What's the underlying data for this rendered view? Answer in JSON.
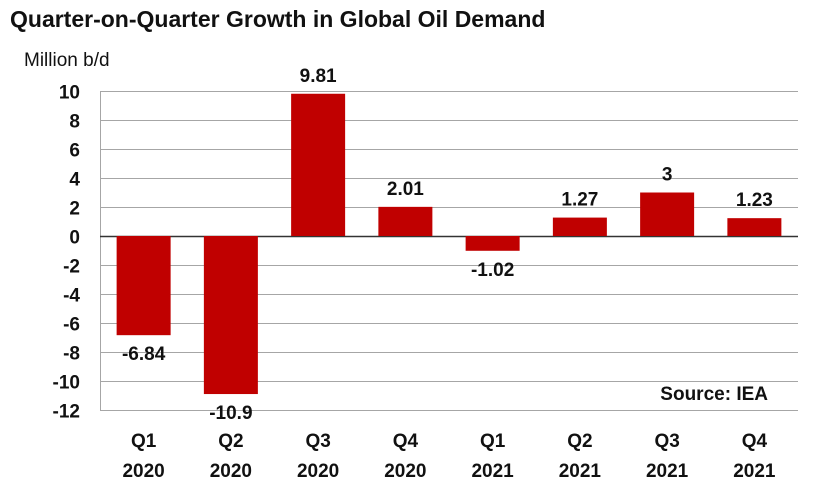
{
  "chart_data": {
    "type": "bar",
    "title": "Quarter-on-Quarter Growth in Global Oil Demand",
    "ylabel": "Million b/d",
    "xlabel": "",
    "categories": [
      [
        "Q1",
        "2020"
      ],
      [
        "Q2",
        "2020"
      ],
      [
        "Q3",
        "2020"
      ],
      [
        "Q4",
        "2020"
      ],
      [
        "Q1",
        "2021"
      ],
      [
        "Q2",
        "2021"
      ],
      [
        "Q3",
        "2021"
      ],
      [
        "Q4",
        "2021"
      ]
    ],
    "values": [
      -6.84,
      -10.9,
      9.81,
      2.01,
      -1.02,
      1.27,
      3,
      1.23
    ],
    "data_labels": [
      "-6.84",
      "-10.9",
      "9.81",
      "2.01",
      "-1.02",
      "1.27",
      "3",
      "1.23"
    ],
    "ylim": [
      -12,
      10
    ],
    "yticks": [
      10,
      8,
      6,
      4,
      2,
      0,
      -2,
      -4,
      -6,
      -8,
      -10,
      -12
    ],
    "grid": true,
    "bar_color": "#c00000",
    "annotation": "Source: IEA"
  }
}
